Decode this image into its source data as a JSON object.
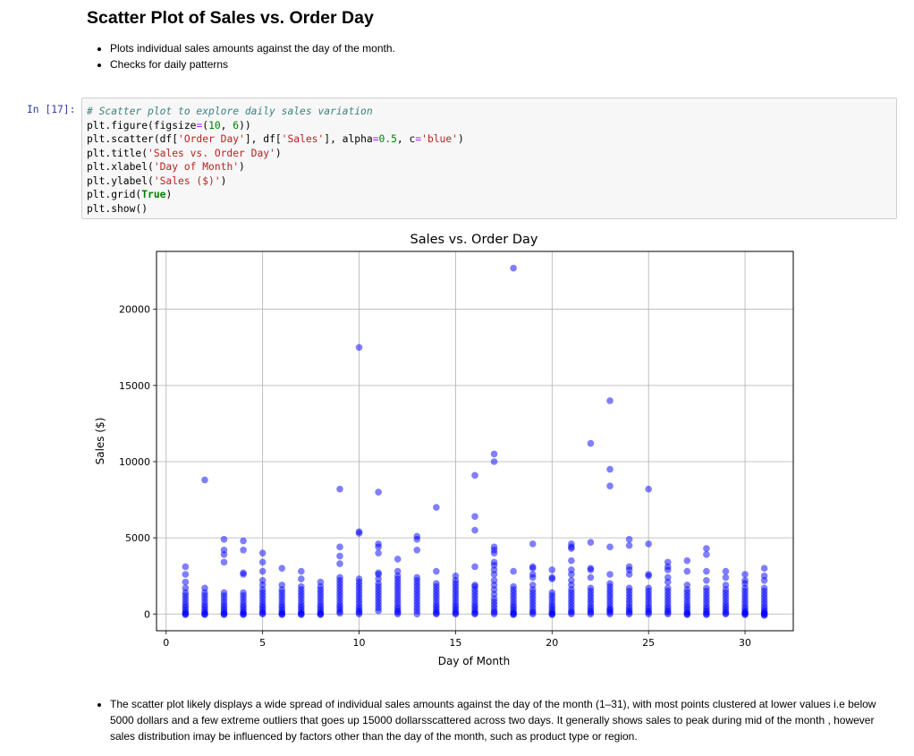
{
  "page": {
    "heading": "Scatter Plot of Sales vs. Order Day",
    "intro_bullets": [
      "Plots individual sales amounts against the day of the month.",
      "Checks for daily patterns"
    ],
    "summary_bullet": "The scatter plot likely displays a wide spread of individual sales amounts against the day of the month (1–31), with most points clustered at lower values i.e below 5000 dollars and a few extreme outliers that goes up 15000 dollarsscattered across two days. It generally shows sales to peak during mid of the month , however sales distribution imay be influenced by factors other than the day of the month, such as product type or region."
  },
  "cell": {
    "prompt": "In [17]:",
    "code_lines": [
      [
        {
          "t": "# Scatter plot to explore daily sales variation",
          "c": "cm"
        }
      ],
      [
        {
          "t": "plt.figure(figsize"
        },
        {
          "t": "=",
          "c": "op"
        },
        {
          "t": "("
        },
        {
          "t": "10",
          "c": "nu"
        },
        {
          "t": ", "
        },
        {
          "t": "6",
          "c": "nu"
        },
        {
          "t": "))"
        }
      ],
      [
        {
          "t": "plt.scatter(df["
        },
        {
          "t": "'Order Day'",
          "c": "st"
        },
        {
          "t": "], df["
        },
        {
          "t": "'Sales'",
          "c": "st"
        },
        {
          "t": "], alpha"
        },
        {
          "t": "=",
          "c": "op"
        },
        {
          "t": "0.5",
          "c": "nu"
        },
        {
          "t": ", c"
        },
        {
          "t": "=",
          "c": "op"
        },
        {
          "t": "'blue'",
          "c": "st"
        },
        {
          "t": ")"
        }
      ],
      [
        {
          "t": "plt.title("
        },
        {
          "t": "'Sales vs. Order Day'",
          "c": "st"
        },
        {
          "t": ")"
        }
      ],
      [
        {
          "t": "plt.xlabel("
        },
        {
          "t": "'Day of Month'",
          "c": "st"
        },
        {
          "t": ")"
        }
      ],
      [
        {
          "t": "plt.ylabel("
        },
        {
          "t": "'Sales ($)'",
          "c": "st"
        },
        {
          "t": ")"
        }
      ],
      [
        {
          "t": "plt.grid("
        },
        {
          "t": "True",
          "c": "kw"
        },
        {
          "t": ")"
        }
      ],
      [
        {
          "t": "plt.show()"
        }
      ]
    ]
  },
  "chart_data": {
    "type": "scatter",
    "title": "Sales vs. Order Day",
    "xlabel": "Day of Month",
    "ylabel": "Sales ($)",
    "xlim": [
      -0.5,
      32.5
    ],
    "ylim": [
      -1100,
      23800
    ],
    "xticks": [
      0,
      5,
      10,
      15,
      20,
      25,
      30
    ],
    "yticks": [
      0,
      5000,
      10000,
      15000,
      20000
    ],
    "grid": true,
    "point_color": "#0000ff",
    "alpha": 0.5,
    "series": [
      {
        "x": [
          1,
          1,
          1,
          1,
          1,
          1,
          1,
          1,
          1,
          1,
          1,
          1,
          1,
          1,
          1,
          2,
          2,
          2,
          2,
          2,
          2,
          2,
          2,
          2,
          2,
          2,
          2,
          2,
          3,
          3,
          3,
          3,
          3,
          3,
          3,
          3,
          3,
          3,
          3,
          3,
          3,
          3,
          3,
          4,
          4,
          4,
          4,
          4,
          4,
          4,
          4,
          4,
          4,
          4,
          4,
          4,
          4,
          4,
          5,
          5,
          5,
          5,
          5,
          5,
          5,
          5,
          5,
          5,
          5,
          5,
          5,
          5,
          5,
          5,
          6,
          6,
          6,
          6,
          6,
          6,
          6,
          6,
          6,
          6,
          6,
          6,
          6,
          6,
          7,
          7,
          7,
          7,
          7,
          7,
          7,
          7,
          7,
          7,
          7,
          7,
          7,
          7,
          7,
          8,
          8,
          8,
          8,
          8,
          8,
          8,
          8,
          8,
          8,
          8,
          8,
          8,
          8,
          9,
          9,
          9,
          9,
          9,
          9,
          9,
          9,
          9,
          9,
          9,
          9,
          9,
          9,
          9,
          9,
          9,
          9,
          10,
          10,
          10,
          10,
          10,
          10,
          10,
          10,
          10,
          10,
          10,
          10,
          10,
          10,
          10,
          10,
          10,
          11,
          11,
          11,
          11,
          11,
          11,
          11,
          11,
          11,
          11,
          11,
          11,
          11,
          11,
          11,
          11,
          11,
          12,
          12,
          12,
          12,
          12,
          12,
          12,
          12,
          12,
          12,
          12,
          12,
          12,
          12,
          12,
          12,
          12,
          13,
          13,
          13,
          13,
          13,
          13,
          13,
          13,
          13,
          13,
          13,
          13,
          13,
          13,
          13,
          13,
          14,
          14,
          14,
          14,
          14,
          14,
          14,
          14,
          14,
          14,
          14,
          14,
          14,
          14,
          14,
          15,
          15,
          15,
          15,
          15,
          15,
          15,
          15,
          15,
          15,
          15,
          15,
          15,
          15,
          15,
          16,
          16,
          16,
          16,
          16,
          16,
          16,
          16,
          16,
          16,
          16,
          16,
          16,
          16,
          16,
          16,
          16,
          17,
          17,
          17,
          17,
          17,
          17,
          17,
          17,
          17,
          17,
          17,
          17,
          17,
          17,
          17,
          17,
          17,
          17,
          17,
          17,
          18,
          18,
          18,
          18,
          18,
          18,
          18,
          18,
          18,
          18,
          18,
          18,
          18,
          18,
          18,
          19,
          19,
          19,
          19,
          19,
          19,
          19,
          19,
          19,
          19,
          19,
          19,
          19,
          19,
          19,
          19,
          20,
          20,
          20,
          20,
          20,
          20,
          20,
          20,
          20,
          20,
          20,
          20,
          20,
          20,
          21,
          21,
          21,
          21,
          21,
          21,
          21,
          21,
          21,
          21,
          21,
          21,
          21,
          21,
          21,
          21,
          21,
          21,
          22,
          22,
          22,
          22,
          22,
          22,
          22,
          22,
          22,
          22,
          22,
          22,
          22,
          22,
          22,
          22,
          23,
          23,
          23,
          23,
          23,
          23,
          23,
          23,
          23,
          23,
          23,
          23,
          23,
          23,
          23,
          23,
          23,
          23,
          24,
          24,
          24,
          24,
          24,
          24,
          24,
          24,
          24,
          24,
          24,
          24,
          24,
          24,
          24,
          24,
          25,
          25,
          25,
          25,
          25,
          25,
          25,
          25,
          25,
          25,
          25,
          25,
          25,
          25,
          25,
          26,
          26,
          26,
          26,
          26,
          26,
          26,
          26,
          26,
          26,
          26,
          26,
          26,
          26,
          26,
          26,
          27,
          27,
          27,
          27,
          27,
          27,
          27,
          27,
          27,
          27,
          27,
          27,
          27,
          27,
          27,
          28,
          28,
          28,
          28,
          28,
          28,
          28,
          28,
          28,
          28,
          28,
          28,
          28,
          28,
          28,
          28,
          29,
          29,
          29,
          29,
          29,
          29,
          29,
          29,
          29,
          29,
          29,
          29,
          29,
          29,
          30,
          30,
          30,
          30,
          30,
          30,
          30,
          30,
          30,
          30,
          30,
          30,
          30,
          30,
          30,
          30,
          31,
          31,
          31,
          31,
          31,
          31,
          31,
          31,
          31,
          31,
          31,
          31,
          31,
          31,
          31,
          31,
          31
        ],
        "y": [
          3100,
          2600,
          2100,
          1700,
          1400,
          1200,
          1000,
          800,
          600,
          450,
          300,
          150,
          50,
          0,
          -50,
          8800,
          1700,
          1400,
          1200,
          1000,
          800,
          600,
          450,
          300,
          150,
          50,
          0,
          -50,
          4900,
          4200,
          3900,
          3400,
          1400,
          1200,
          1000,
          800,
          600,
          450,
          300,
          150,
          50,
          0,
          -50,
          4800,
          4200,
          2700,
          2600,
          1400,
          1200,
          1000,
          800,
          600,
          450,
          300,
          150,
          50,
          0,
          -50,
          4000,
          3400,
          2800,
          2200,
          1900,
          1600,
          1400,
          1200,
          1000,
          800,
          600,
          450,
          300,
          150,
          50,
          0,
          3000,
          1900,
          1600,
          1400,
          1200,
          1000,
          800,
          600,
          450,
          300,
          150,
          50,
          0,
          -50,
          2800,
          2300,
          1800,
          1600,
          1400,
          1200,
          1000,
          800,
          600,
          450,
          300,
          150,
          50,
          0,
          -50,
          2100,
          1800,
          1600,
          1400,
          1200,
          1000,
          800,
          600,
          450,
          300,
          150,
          50,
          0,
          -50,
          8200,
          4400,
          3800,
          3300,
          2400,
          2200,
          2000,
          1800,
          1600,
          1400,
          1200,
          1000,
          800,
          600,
          450,
          300,
          150,
          50,
          17500,
          5400,
          5300,
          2300,
          2100,
          1900,
          1700,
          1500,
          1300,
          1100,
          900,
          700,
          500,
          350,
          200,
          100,
          0,
          8000,
          4600,
          4400,
          4000,
          2700,
          2600,
          2300,
          2000,
          1800,
          1600,
          1400,
          1200,
          1000,
          800,
          600,
          400,
          200,
          3600,
          2800,
          2500,
          2300,
          2100,
          1900,
          1700,
          1500,
          1300,
          1100,
          900,
          700,
          500,
          350,
          200,
          100,
          0,
          5100,
          4900,
          4200,
          2400,
          2200,
          2000,
          1800,
          1600,
          1400,
          1200,
          1000,
          800,
          600,
          400,
          200,
          0,
          7000,
          2800,
          2000,
          1800,
          1600,
          1400,
          1200,
          1000,
          800,
          600,
          450,
          300,
          150,
          50,
          0,
          2500,
          2200,
          2000,
          1800,
          1600,
          1400,
          1200,
          1000,
          800,
          600,
          450,
          300,
          150,
          50,
          0,
          9100,
          6400,
          5500,
          3100,
          1900,
          1800,
          1600,
          1400,
          1200,
          1000,
          800,
          600,
          450,
          300,
          150,
          50,
          0,
          10500,
          10000,
          4400,
          4200,
          4000,
          3400,
          3200,
          2900,
          2600,
          2200,
          1900,
          1600,
          1300,
          1000,
          800,
          600,
          400,
          200,
          100,
          0,
          22700,
          2800,
          1800,
          1600,
          1400,
          1200,
          1000,
          800,
          600,
          450,
          300,
          150,
          50,
          0,
          -50,
          4600,
          3100,
          3000,
          2600,
          2400,
          1900,
          1600,
          1400,
          1200,
          1000,
          800,
          600,
          400,
          200,
          100,
          0,
          2900,
          2400,
          2300,
          1400,
          1200,
          1000,
          800,
          600,
          450,
          300,
          150,
          50,
          0,
          -50,
          4600,
          4400,
          4300,
          3500,
          2900,
          2600,
          2200,
          1900,
          1600,
          1400,
          1200,
          1000,
          800,
          600,
          400,
          200,
          100,
          0,
          11200,
          4700,
          3000,
          2900,
          2400,
          1700,
          1500,
          1300,
          1100,
          900,
          700,
          500,
          350,
          200,
          100,
          0,
          14000,
          9500,
          8400,
          4400,
          2600,
          2000,
          1800,
          1600,
          1400,
          1200,
          1000,
          800,
          600,
          400,
          300,
          200,
          100,
          0,
          4900,
          4500,
          3100,
          2900,
          2600,
          1700,
          1500,
          1300,
          1100,
          900,
          700,
          500,
          350,
          200,
          100,
          0,
          8200,
          4600,
          2600,
          2500,
          1700,
          1500,
          1300,
          1100,
          900,
          700,
          500,
          350,
          200,
          100,
          0,
          3400,
          3100,
          2900,
          2400,
          2100,
          1700,
          1500,
          1300,
          1100,
          900,
          700,
          500,
          350,
          200,
          100,
          0,
          3500,
          2800,
          1900,
          1600,
          1400,
          1200,
          1000,
          800,
          600,
          450,
          300,
          150,
          50,
          0,
          -50,
          4300,
          3900,
          2800,
          2200,
          1700,
          1500,
          1300,
          1100,
          900,
          700,
          500,
          350,
          200,
          100,
          0,
          -50,
          2800,
          2400,
          1900,
          1600,
          1400,
          1200,
          1000,
          800,
          600,
          450,
          300,
          150,
          50,
          0,
          2600,
          2200,
          2000,
          1700,
          1500,
          1300,
          1100,
          900,
          700,
          500,
          350,
          200,
          100,
          50,
          0,
          -50,
          3000,
          2500,
          2200,
          1700,
          1500,
          1300,
          1100,
          900,
          700,
          500,
          350,
          200,
          100,
          50,
          0,
          -50,
          -100
        ]
      }
    ]
  }
}
